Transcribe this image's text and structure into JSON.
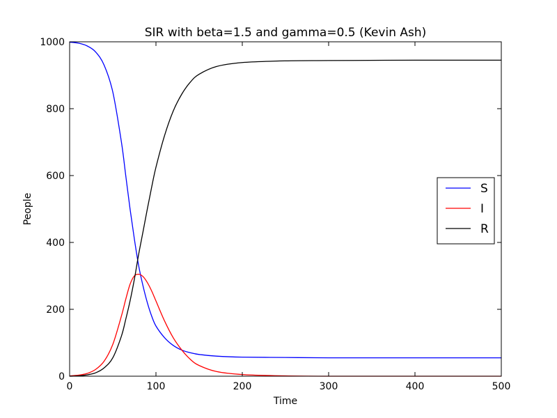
{
  "chart_data": {
    "type": "line",
    "title": "SIR with beta=1.5 and gamma=0.5 (Kevin Ash)",
    "xlabel": "Time",
    "ylabel": "People",
    "xlim": [
      0,
      500
    ],
    "ylim": [
      0,
      1000
    ],
    "xticks": [
      0,
      100,
      200,
      300,
      400,
      500
    ],
    "yticks": [
      0,
      200,
      400,
      600,
      800,
      1000
    ],
    "grid": false,
    "legend": {
      "placement": "center-right",
      "entries": [
        "S",
        "I",
        "R"
      ]
    },
    "series": [
      {
        "name": "S",
        "color": "#0000ff",
        "x": [
          0,
          10,
          20,
          30,
          40,
          50,
          60,
          65,
          70,
          75,
          80,
          85,
          90,
          95,
          100,
          110,
          120,
          130,
          140,
          150,
          170,
          200,
          250,
          300,
          400,
          500
        ],
        "y": [
          999,
          996,
          988,
          970,
          930,
          850,
          700,
          600,
          500,
          410,
          330,
          270,
          220,
          180,
          150,
          115,
          92,
          78,
          70,
          65,
          60,
          57,
          56,
          55,
          55,
          55
        ]
      },
      {
        "name": "I",
        "color": "#ff0000",
        "x": [
          0,
          10,
          20,
          30,
          40,
          50,
          60,
          65,
          70,
          75,
          80,
          85,
          90,
          95,
          100,
          110,
          120,
          130,
          140,
          150,
          170,
          200,
          250,
          300,
          400,
          500
        ],
        "y": [
          1,
          3,
          8,
          20,
          45,
          95,
          180,
          230,
          275,
          300,
          305,
          298,
          280,
          255,
          225,
          165,
          115,
          78,
          50,
          32,
          14,
          5,
          1,
          0,
          0,
          0
        ]
      },
      {
        "name": "R",
        "color": "#000000",
        "x": [
          0,
          10,
          20,
          30,
          40,
          50,
          60,
          65,
          70,
          75,
          80,
          85,
          90,
          95,
          100,
          110,
          120,
          130,
          140,
          150,
          170,
          200,
          250,
          300,
          400,
          500
        ],
        "y": [
          0,
          1,
          4,
          10,
          25,
          55,
          120,
          170,
          225,
          290,
          365,
          432,
          500,
          565,
          625,
          720,
          793,
          844,
          880,
          903,
          926,
          938,
          943,
          944,
          945,
          945
        ]
      }
    ]
  }
}
